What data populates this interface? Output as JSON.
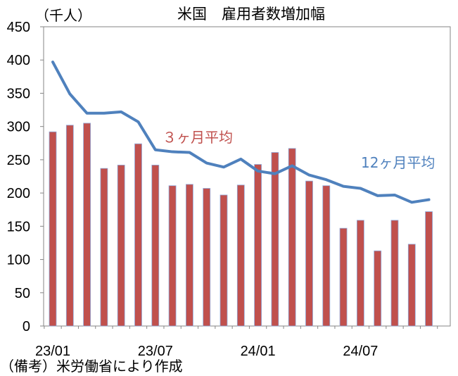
{
  "chart_data": {
    "type": "bar",
    "title": "米国　雇用者数増加幅",
    "ylabel": "（千人）",
    "ylim": [
      0,
      450
    ],
    "yticks": [
      0,
      50,
      100,
      150,
      200,
      250,
      300,
      350,
      400,
      450
    ],
    "x_tick_labels": [
      "23/01",
      "23/07",
      "24/01",
      "24/07"
    ],
    "x_tick_indices": [
      0,
      6,
      12,
      18
    ],
    "categories": [
      "23/01",
      "23/02",
      "23/03",
      "23/04",
      "23/05",
      "23/06",
      "23/07",
      "23/08",
      "23/09",
      "23/10",
      "23/11",
      "23/12",
      "24/01",
      "24/02",
      "24/03",
      "24/04",
      "24/05",
      "24/06",
      "24/07",
      "24/08",
      "24/09",
      "24/10",
      "24/11"
    ],
    "grid": false,
    "series": [
      {
        "name": "３ヶ月平均",
        "kind": "bar",
        "color": "#C0504D",
        "values": [
          292,
          302,
          305,
          237,
          242,
          274,
          242,
          211,
          213,
          207,
          197,
          212,
          243,
          261,
          267,
          218,
          211,
          147,
          159,
          113,
          159,
          123,
          172
        ]
      },
      {
        "name": "12ヶ月平均",
        "kind": "line",
        "color": "#4F81BD",
        "values": [
          397,
          349,
          320,
          320,
          322,
          307,
          265,
          262,
          261,
          245,
          239,
          251,
          233,
          229,
          241,
          227,
          220,
          210,
          207,
          196,
          197,
          186,
          190
        ]
      }
    ],
    "note": "（備考）米労働省により作成"
  }
}
